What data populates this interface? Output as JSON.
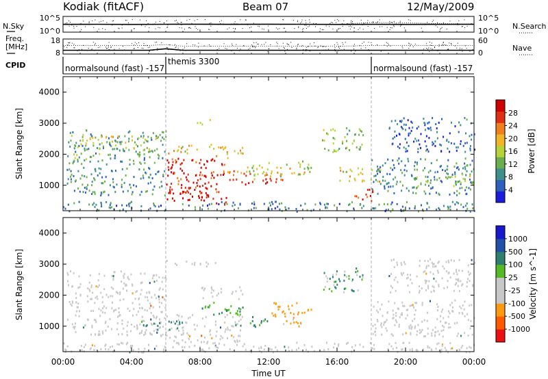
{
  "header": {
    "station": "Kodiak (fitACF)",
    "beam": "Beam 07",
    "date": "12/May/2009"
  },
  "side_labels": {
    "nsky": "N.Sky",
    "nsearch": "N.Search",
    "freq_line1": "Freq.",
    "freq_line2": "[MHz]",
    "nave": "Nave",
    "cpid": "CPID"
  },
  "cpid_segments": [
    {
      "label": "normalsound (fast) -157",
      "start_hour": 0.0
    },
    {
      "label": "themis 3300",
      "start_hour": 6.0
    },
    {
      "label": "normalsound (fast) -157",
      "start_hour": 18.0
    }
  ],
  "colors": {
    "power": [
      "#1c1cdc",
      "#2e5fbc",
      "#3f8f8c",
      "#6aae50",
      "#b8d23a",
      "#f2b528",
      "#f07f1e",
      "#e03014",
      "#d00000"
    ],
    "velocity": [
      "#ee1010",
      "#ff5a00",
      "#ff9a10",
      "#c8c8c8",
      "#c8c8c8",
      "#55bb25",
      "#2f7f70",
      "#2050a8",
      "#1818cc"
    ],
    "ground_scatter": "#c8c8c8"
  },
  "chart_data": [
    {
      "type": "line",
      "title": "N.Sky / N.Search",
      "y_ticks": [
        "10^5",
        "10^0"
      ],
      "y_ticks_right": [
        "10^5",
        "10^0"
      ],
      "y_scale": "log",
      "ylim": [
        1,
        100000
      ],
      "x": [
        0,
        2,
        4,
        6,
        8,
        10,
        12,
        14,
        16,
        18,
        20,
        22,
        24
      ],
      "series": [
        {
          "name": "N.Sky",
          "values": [
            300,
            320,
            280,
            310,
            330,
            300,
            340,
            310,
            290,
            300,
            280,
            300,
            310
          ]
        },
        {
          "name": "N.Search",
          "values": [
            280,
            300,
            260,
            300,
            300,
            290,
            300,
            300,
            280,
            1200,
            900,
            500,
            400
          ]
        }
      ]
    },
    {
      "type": "line",
      "title": "Freq / Nave",
      "y_ticks": [
        "18",
        "8"
      ],
      "y_ticks_right": [
        "60",
        "0"
      ],
      "ylim": [
        8,
        18
      ],
      "x": [
        0,
        1,
        2,
        3,
        4,
        5,
        6,
        7,
        8,
        10,
        12,
        14,
        16,
        18,
        20,
        22,
        24
      ],
      "series": [
        {
          "name": "Freq. [MHz]",
          "values": [
            10.5,
            10.5,
            10.5,
            10.5,
            10.5,
            10.5,
            11.5,
            10.5,
            10.5,
            10.5,
            10.5,
            10.5,
            10.5,
            10.5,
            10.5,
            10.5,
            10.5
          ]
        },
        {
          "name": "Nave",
          "values": [
            34,
            34,
            34,
            34,
            34,
            34,
            38,
            31,
            31,
            31,
            31,
            31,
            31,
            34,
            34,
            34,
            34
          ]
        }
      ]
    },
    {
      "type": "heatmap",
      "title": "Power",
      "ylabel": "Slant Range [km]",
      "colorbar_label": "Power [dB]",
      "y_ticks": [
        "1000",
        "2000",
        "3000",
        "4000"
      ],
      "colorbar_ticks": [
        "4",
        "8",
        "12",
        "16",
        "20",
        "24",
        "28"
      ],
      "ylim": [
        180,
        4500
      ],
      "vlim": [
        0,
        32
      ],
      "x_ticks": [
        "00:00",
        "04:00",
        "08:00",
        "12:00",
        "16:00",
        "20:00",
        "00:00"
      ],
      "regions": [
        {
          "t0": 0.2,
          "t1": 6.0,
          "r0": 1700,
          "r1": 2800,
          "power": 10
        },
        {
          "t0": 0.2,
          "t1": 6.0,
          "r0": 700,
          "r1": 1600,
          "power": 9
        },
        {
          "t0": 1.0,
          "t1": 5.5,
          "r0": 2150,
          "r1": 2650,
          "power": 16
        },
        {
          "t0": 0.0,
          "t1": 24.0,
          "r0": 180,
          "r1": 500,
          "power": 8
        },
        {
          "t0": 6.0,
          "t1": 9.5,
          "r0": 400,
          "r1": 1900,
          "power": 28
        },
        {
          "t0": 6.2,
          "t1": 8.5,
          "r0": 600,
          "r1": 1000,
          "power": 30
        },
        {
          "t0": 6.0,
          "t1": 7.8,
          "r0": 2000,
          "r1": 2350,
          "power": 18
        },
        {
          "t0": 8.5,
          "t1": 10.5,
          "r0": 1900,
          "r1": 2350,
          "power": 20
        },
        {
          "t0": 7.8,
          "t1": 8.8,
          "r0": 2950,
          "r1": 3150,
          "power": 18
        },
        {
          "t0": 9.5,
          "t1": 13.0,
          "r0": 1200,
          "r1": 1500,
          "power": 24
        },
        {
          "t0": 10.5,
          "t1": 14.5,
          "r0": 1300,
          "r1": 1800,
          "power": 17
        },
        {
          "t0": 10.0,
          "t1": 12.5,
          "r0": 1050,
          "r1": 1250,
          "power": 28
        },
        {
          "t0": 15.0,
          "t1": 17.5,
          "r0": 2100,
          "r1": 2900,
          "power": 14
        },
        {
          "t0": 16.0,
          "t1": 18.5,
          "r0": 1100,
          "r1": 1600,
          "power": 18
        },
        {
          "t0": 17.0,
          "t1": 18.2,
          "r0": 450,
          "r1": 900,
          "power": 27
        },
        {
          "t0": 18.0,
          "t1": 24.0,
          "r0": 700,
          "r1": 1900,
          "power": 9
        },
        {
          "t0": 20.5,
          "t1": 24.0,
          "r0": 1000,
          "r1": 1400,
          "power": 14
        },
        {
          "t0": 19.0,
          "t1": 24.0,
          "r0": 2100,
          "r1": 3200,
          "power": 6
        }
      ]
    },
    {
      "type": "heatmap",
      "title": "Velocity",
      "ylabel": "Slant Range [km]",
      "xlabel": "Time UT",
      "colorbar_label": "Velocity [m s^-1]",
      "y_ticks": [
        "1000",
        "2000",
        "3000",
        "4000"
      ],
      "colorbar_ticks": [
        "-1000",
        "-500",
        "-100",
        "-25",
        "25",
        "100",
        "500",
        "1000"
      ],
      "ylim": [
        180,
        4500
      ],
      "vlim": [
        -1200,
        1200
      ],
      "x_ticks": [
        "00:00",
        "04:00",
        "08:00",
        "12:00",
        "16:00",
        "20:00",
        "00:00"
      ],
      "regions": [
        {
          "t0": 0.2,
          "t1": 6.0,
          "r0": 700,
          "r1": 2800,
          "velocity": 0,
          "ground": true
        },
        {
          "t0": 0.0,
          "t1": 24.0,
          "r0": 180,
          "r1": 500,
          "velocity": 0,
          "ground": true
        },
        {
          "t0": 6.0,
          "t1": 10.5,
          "r0": 500,
          "r1": 1400,
          "velocity": 0,
          "ground": true
        },
        {
          "t0": 7.5,
          "t1": 10.5,
          "r0": 1400,
          "r1": 1800,
          "velocity": 150
        },
        {
          "t0": 4.5,
          "t1": 7.0,
          "r0": 900,
          "r1": 1200,
          "velocity": 200
        },
        {
          "t0": 10.5,
          "t1": 12.0,
          "r0": 1000,
          "r1": 1400,
          "velocity": 150
        },
        {
          "t0": 12.0,
          "t1": 14.5,
          "r0": 1300,
          "r1": 1800,
          "velocity": -300
        },
        {
          "t0": 12.5,
          "t1": 14.0,
          "r0": 1000,
          "r1": 1300,
          "velocity": -150
        },
        {
          "t0": 8.0,
          "t1": 10.5,
          "r0": 1900,
          "r1": 2300,
          "velocity": 0,
          "ground": true
        },
        {
          "t0": 15.0,
          "t1": 17.5,
          "r0": 2100,
          "r1": 2900,
          "velocity": 80
        },
        {
          "t0": 18.0,
          "t1": 24.0,
          "r0": 700,
          "r1": 1900,
          "velocity": 0,
          "ground": true
        },
        {
          "t0": 19.0,
          "t1": 24.0,
          "r0": 2100,
          "r1": 3200,
          "velocity": 0,
          "ground": true
        },
        {
          "t0": 6.0,
          "t1": 9.0,
          "r0": 2950,
          "r1": 3150,
          "velocity": 0,
          "ground": true
        }
      ]
    }
  ]
}
